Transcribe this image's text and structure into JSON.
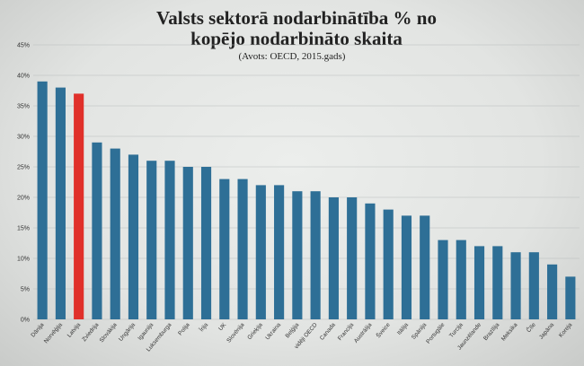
{
  "chart_data": {
    "type": "bar",
    "title_line1": "Valsts sektorā nodarbinātība % no",
    "title_line2": "kopējo nodarbināto skaita",
    "subtitle": "(Avots: OECD, 2015.gads)",
    "xlabel": "",
    "ylabel": "",
    "ylim": [
      0,
      45
    ],
    "yticks": [
      "0%",
      "5%",
      "10%",
      "15%",
      "20%",
      "25%",
      "30%",
      "35%",
      "40%",
      "45%"
    ],
    "ytick_values": [
      0,
      5,
      10,
      15,
      20,
      25,
      30,
      35,
      40,
      45
    ],
    "grid": true,
    "categories": [
      "Dānija",
      "Norvēģija",
      "Latvija",
      "Zviedrija",
      "Slovākija",
      "Ungārija",
      "Igaunija",
      "Luksemburga",
      "Polija",
      "Īrija",
      "UK",
      "Slovēnija",
      "Grieķija",
      "Ukraina",
      "Beļģija",
      "vidēji OECD",
      "Canada",
      "Francija",
      "Austrālija",
      "Šveice",
      "Itālija",
      "Spānija",
      "Portugāle",
      "Turcija",
      "Jaunzēlande",
      "Brazīlija",
      "Meksika",
      "Čīle",
      "Japāna",
      "Koreja"
    ],
    "values": [
      39,
      38,
      37,
      29,
      28,
      27,
      26,
      26,
      25,
      25,
      23,
      23,
      22,
      22,
      21,
      21,
      20,
      20,
      19,
      18,
      17,
      17,
      13,
      13,
      12,
      12,
      11,
      11,
      9,
      7
    ],
    "highlight_category": "Latvija",
    "colors": {
      "bar": "#2e6f96",
      "highlight": "#e0302a",
      "grid": "#b8bcbc"
    }
  }
}
